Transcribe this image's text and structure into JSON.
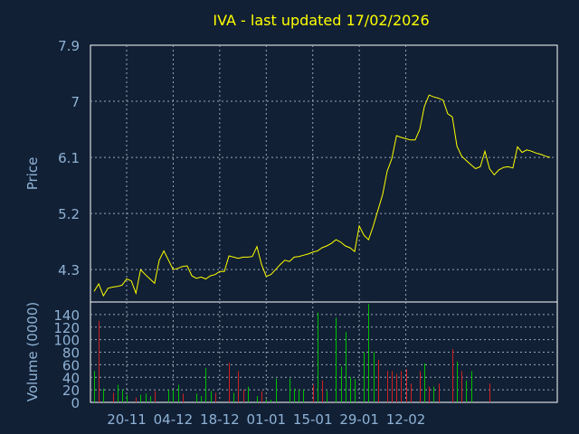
{
  "title": "IVA - last updated 17/02/2026",
  "colors": {
    "background": "#112035",
    "text": "#8fb2d5",
    "title": "#ffff00",
    "frame": "#ffffff",
    "price_line": "#ffff00",
    "volume_up": "#00c000",
    "volume_down": "#d02020"
  },
  "chart_data": [
    {
      "type": "line",
      "ylabel": "Price",
      "ylim": [
        3.78,
        7.9
      ],
      "yticks": [
        "4.3",
        "5.2",
        "6.1",
        "7",
        "7.9"
      ],
      "grid": true,
      "x_tick_labels": [
        "20-11",
        "04-12",
        "18-12",
        "01-01",
        "15-01",
        "29-01",
        "12-02"
      ],
      "x_tick_index": [
        7,
        17,
        27,
        37,
        47,
        57,
        67
      ],
      "values": [
        3.95,
        4.07,
        3.88,
        4.0,
        4.02,
        4.03,
        4.05,
        4.15,
        4.12,
        3.92,
        4.3,
        4.22,
        4.15,
        4.08,
        4.45,
        4.6,
        4.45,
        4.3,
        4.32,
        4.35,
        4.36,
        4.2,
        4.16,
        4.18,
        4.15,
        4.2,
        4.22,
        4.27,
        4.27,
        4.52,
        4.5,
        4.48,
        4.5,
        4.5,
        4.51,
        4.67,
        4.38,
        4.19,
        4.22,
        4.3,
        4.38,
        4.45,
        4.43,
        4.5,
        4.51,
        4.53,
        4.55,
        4.58,
        4.6,
        4.65,
        4.68,
        4.72,
        4.78,
        4.74,
        4.68,
        4.65,
        4.59,
        5.0,
        4.85,
        4.78,
        5.0,
        5.25,
        5.5,
        5.88,
        6.08,
        6.45,
        6.42,
        6.4,
        6.38,
        6.38,
        6.55,
        6.92,
        7.1,
        7.07,
        7.05,
        7.02,
        6.8,
        6.75,
        6.28,
        6.12,
        6.05,
        5.98,
        5.92,
        5.95,
        6.2,
        5.92,
        5.82,
        5.9,
        5.94,
        5.95,
        5.93,
        6.27,
        6.18,
        6.22,
        6.2,
        6.17,
        6.15,
        6.12,
        6.1
      ]
    },
    {
      "type": "bar",
      "ylabel": "Volume (0000)",
      "ylim": [
        0,
        160
      ],
      "yticks": [
        "0",
        "20",
        "40",
        "60",
        "80",
        "100",
        "120",
        "140",
        "160"
      ],
      "grid": true,
      "bars": [
        {
          "i": 0,
          "v": 50,
          "d": "up"
        },
        {
          "i": 1,
          "v": 130,
          "d": "down"
        },
        {
          "i": 2,
          "v": 22,
          "d": "up"
        },
        {
          "i": 4,
          "v": 15,
          "d": "down"
        },
        {
          "i": 5,
          "v": 28,
          "d": "up"
        },
        {
          "i": 6,
          "v": 20,
          "d": "up"
        },
        {
          "i": 7,
          "v": 12,
          "d": "up"
        },
        {
          "i": 9,
          "v": 8,
          "d": "down"
        },
        {
          "i": 10,
          "v": 12,
          "d": "up"
        },
        {
          "i": 11,
          "v": 14,
          "d": "up"
        },
        {
          "i": 12,
          "v": 10,
          "d": "up"
        },
        {
          "i": 13,
          "v": 18,
          "d": "down"
        },
        {
          "i": 16,
          "v": 20,
          "d": "up"
        },
        {
          "i": 17,
          "v": 20,
          "d": "up"
        },
        {
          "i": 18,
          "v": 28,
          "d": "up"
        },
        {
          "i": 19,
          "v": 14,
          "d": "down"
        },
        {
          "i": 22,
          "v": 14,
          "d": "up"
        },
        {
          "i": 23,
          "v": 10,
          "d": "up"
        },
        {
          "i": 24,
          "v": 55,
          "d": "up"
        },
        {
          "i": 25,
          "v": 18,
          "d": "up"
        },
        {
          "i": 26,
          "v": 15,
          "d": "down"
        },
        {
          "i": 29,
          "v": 63,
          "d": "down"
        },
        {
          "i": 30,
          "v": 15,
          "d": "up"
        },
        {
          "i": 31,
          "v": 50,
          "d": "down"
        },
        {
          "i": 32,
          "v": 20,
          "d": "down"
        },
        {
          "i": 33,
          "v": 25,
          "d": "up"
        },
        {
          "i": 35,
          "v": 10,
          "d": "up"
        },
        {
          "i": 36,
          "v": 18,
          "d": "down"
        },
        {
          "i": 37,
          "v": 5,
          "d": "up"
        },
        {
          "i": 38,
          "v": 4,
          "d": "up"
        },
        {
          "i": 39,
          "v": 38,
          "d": "up"
        },
        {
          "i": 42,
          "v": 38,
          "d": "up"
        },
        {
          "i": 43,
          "v": 22,
          "d": "up"
        },
        {
          "i": 44,
          "v": 20,
          "d": "up"
        },
        {
          "i": 45,
          "v": 20,
          "d": "up"
        },
        {
          "i": 47,
          "v": 28,
          "d": "down"
        },
        {
          "i": 48,
          "v": 143,
          "d": "up"
        },
        {
          "i": 49,
          "v": 35,
          "d": "down"
        },
        {
          "i": 50,
          "v": 18,
          "d": "up"
        },
        {
          "i": 52,
          "v": 135,
          "d": "up"
        },
        {
          "i": 53,
          "v": 57,
          "d": "up"
        },
        {
          "i": 54,
          "v": 112,
          "d": "up"
        },
        {
          "i": 55,
          "v": 40,
          "d": "up"
        },
        {
          "i": 56,
          "v": 37,
          "d": "up"
        },
        {
          "i": 58,
          "v": 80,
          "d": "up"
        },
        {
          "i": 59,
          "v": 157,
          "d": "up"
        },
        {
          "i": 60,
          "v": 80,
          "d": "up"
        },
        {
          "i": 61,
          "v": 68,
          "d": "down"
        },
        {
          "i": 63,
          "v": 50,
          "d": "down"
        },
        {
          "i": 64,
          "v": 50,
          "d": "down"
        },
        {
          "i": 65,
          "v": 45,
          "d": "down"
        },
        {
          "i": 66,
          "v": 50,
          "d": "down"
        },
        {
          "i": 67,
          "v": 53,
          "d": "down"
        },
        {
          "i": 68,
          "v": 30,
          "d": "down"
        },
        {
          "i": 70,
          "v": 50,
          "d": "down"
        },
        {
          "i": 71,
          "v": 62,
          "d": "up"
        },
        {
          "i": 72,
          "v": 25,
          "d": "down"
        },
        {
          "i": 73,
          "v": 25,
          "d": "up"
        },
        {
          "i": 74,
          "v": 30,
          "d": "down"
        },
        {
          "i": 77,
          "v": 85,
          "d": "down"
        },
        {
          "i": 78,
          "v": 65,
          "d": "up"
        },
        {
          "i": 79,
          "v": 50,
          "d": "down"
        },
        {
          "i": 80,
          "v": 35,
          "d": "up"
        },
        {
          "i": 81,
          "v": 50,
          "d": "up"
        },
        {
          "i": 85,
          "v": 30,
          "d": "down"
        }
      ]
    }
  ]
}
